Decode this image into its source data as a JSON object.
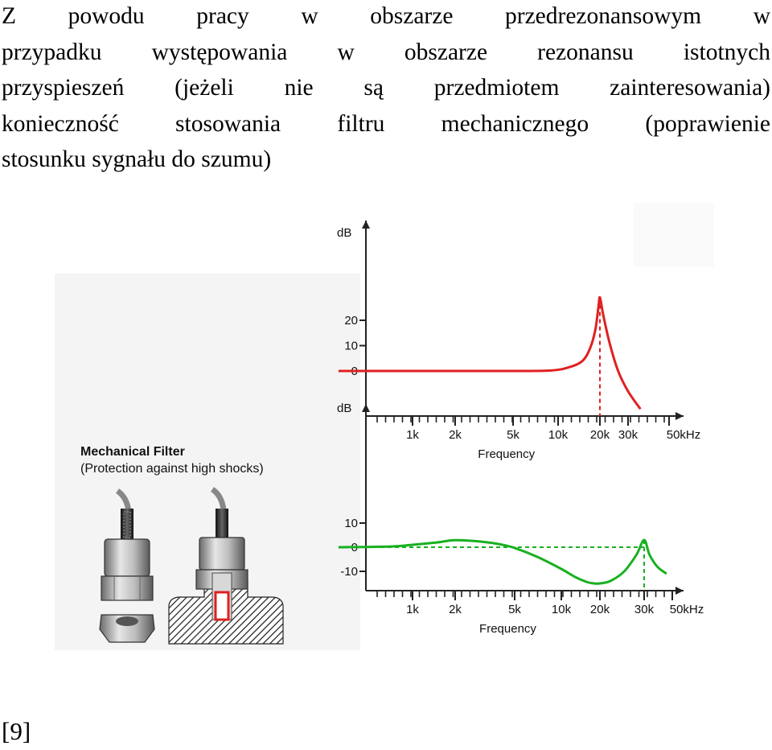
{
  "paragraph": {
    "lines": [
      "Z powodu pracy w obszarze przedrezonansowym w",
      "przypadku występowania w obszarze rezonansu istotnych",
      "przyspieszeń (jeżeli nie są przedmiotem zainteresowania)",
      "konieczność stosowania filtru mechanicznego (poprawienie",
      "stosunku sygnału do szumu)"
    ]
  },
  "figure": {
    "label_title": "Mechanical Filter",
    "label_subtitle": "(Protection against high shocks)",
    "colors": {
      "top_curve": "#e02020",
      "bottom_curve": "#18b020",
      "filter_insert": "#e02020"
    },
    "icons": [
      "sensor-without-filter-icon",
      "sensor-with-mechanical-filter-icon",
      "hex-nut-icon"
    ]
  },
  "chart_data": [
    {
      "type": "line",
      "xlabel": "Frequency",
      "ylabel": "dB",
      "xscale": "log",
      "x_tick_labels": [
        "1k",
        "2k",
        "5k",
        "10k",
        "20k",
        "30k",
        "50kHz"
      ],
      "x_ticks": [
        1000,
        2000,
        5000,
        10000,
        20000,
        30000,
        50000
      ],
      "y_tick_labels": [
        "20",
        "10",
        "0"
      ],
      "y_ticks": [
        20,
        10,
        0
      ],
      "ylim": [
        -20,
        30
      ],
      "resonance_marker_x": 20000,
      "series": [
        {
          "x": [
            300,
            1000,
            2000,
            5000,
            9000,
            12000,
            15000,
            17000,
            18500,
            19500,
            20000,
            21000,
            23000,
            26000,
            30000,
            35000
          ],
          "y": [
            0,
            0,
            0,
            0,
            0.2,
            1.5,
            4,
            9,
            16,
            25,
            29,
            22,
            11,
            0,
            -8,
            -15
          ]
        }
      ]
    },
    {
      "type": "line",
      "xlabel": "Frequency",
      "ylabel": "dB",
      "xscale": "log",
      "x_tick_labels": [
        "1k",
        "2k",
        "5k",
        "10k",
        "20k",
        "30k",
        "50kHz"
      ],
      "x_ticks": [
        1000,
        2000,
        5000,
        10000,
        20000,
        30000,
        50000
      ],
      "y_tick_labels": [
        "10",
        "0",
        "-10"
      ],
      "y_ticks": [
        10,
        0,
        -10
      ],
      "ylim": [
        -16,
        22
      ],
      "resonance_marker_x": 30000,
      "reference_line_y": 0,
      "series": [
        {
          "x": [
            300,
            700,
            1000,
            1500,
            2000,
            3000,
            4000,
            5000,
            7000,
            10000,
            13000,
            16000,
            18000,
            20000,
            22000,
            25000,
            28000,
            30000,
            33000,
            38000,
            45000
          ],
          "y": [
            0,
            0.3,
            1,
            2,
            2.9,
            2.3,
            1.2,
            -0.3,
            -4,
            -9,
            -12.5,
            -14.5,
            -15,
            -15,
            -14,
            -10,
            -3,
            3,
            -3,
            -8,
            -11
          ]
        }
      ]
    }
  ],
  "reference": "[9]"
}
